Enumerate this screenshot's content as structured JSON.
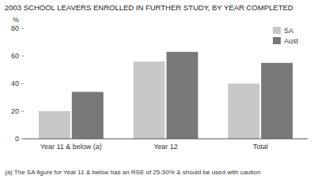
{
  "chart_data": {
    "type": "bar",
    "title": "2003 SCHOOL LEAVERS ENROLLED IN FURTHER STUDY, BY YEAR COMPLETED",
    "categories": [
      "Year 11 & below (a)",
      "Year 12",
      "Total"
    ],
    "series": [
      {
        "name": "SA",
        "color": "#c8c8c8",
        "values": [
          20,
          56,
          40
        ]
      },
      {
        "name": "Aust",
        "color": "#787878",
        "values": [
          34,
          63,
          55
        ]
      }
    ],
    "y_label": "%",
    "ylim": [
      0,
      80
    ],
    "yticks": [
      0,
      20,
      40,
      60,
      80
    ],
    "legend": "upper right",
    "grid": false,
    "footnote": "(a) The SA figure for Year 11 & below has an RSE of 25-50% & should be used with caution"
  }
}
